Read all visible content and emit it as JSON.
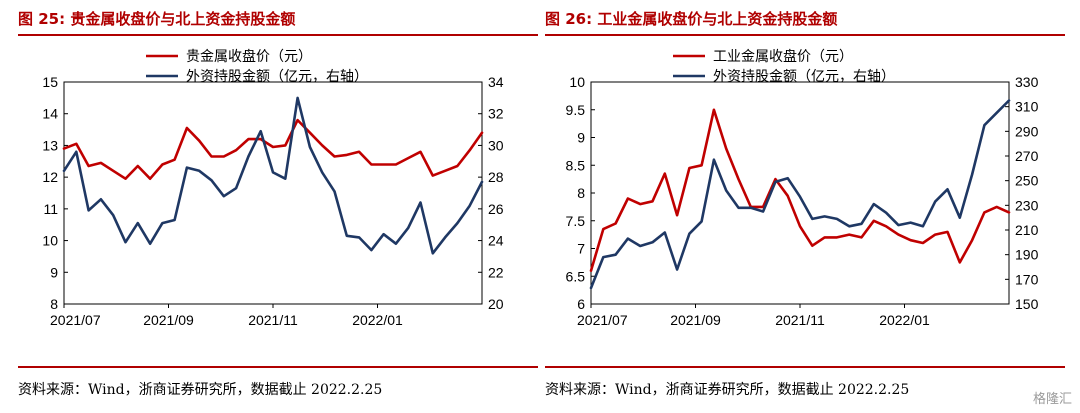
{
  "charts": [
    {
      "title": "图 25: 贵金属收盘价与北上资金持股金额",
      "source": "资料来源：Wind，浙商证券研究所，数据截止 2022.2.25",
      "chart_data": {
        "type": "line",
        "x_ticks": [
          "2021/07",
          "2021/09",
          "2021/11",
          "2022/01"
        ],
        "y_left": {
          "min": 8,
          "max": 15,
          "ticks": [
            8,
            9,
            10,
            11,
            12,
            13,
            14,
            15
          ]
        },
        "y_right": {
          "min": 20,
          "max": 34,
          "ticks": [
            20,
            22,
            24,
            26,
            28,
            30,
            32,
            34
          ]
        },
        "legend_position": "top-center",
        "series": [
          {
            "name": "贵金属收盘价（元）",
            "axis": "left",
            "color": "#c00000",
            "values": [
              12.9,
              13.05,
              12.35,
              12.45,
              12.2,
              11.95,
              12.35,
              11.95,
              12.4,
              12.55,
              13.55,
              13.15,
              12.65,
              12.65,
              12.85,
              13.2,
              13.2,
              12.95,
              13.0,
              13.8,
              13.4,
              13.0,
              12.65,
              12.7,
              12.8,
              12.4,
              12.4,
              12.4,
              12.6,
              12.8,
              12.05,
              12.2,
              12.35,
              12.85,
              13.4
            ]
          },
          {
            "name": "外资持股金额（亿元，右轴）",
            "axis": "right",
            "color": "#1f3864",
            "values": [
              28.4,
              29.6,
              25.9,
              26.6,
              25.6,
              23.9,
              25.1,
              23.8,
              25.1,
              25.3,
              28.6,
              28.4,
              27.8,
              26.8,
              27.3,
              29.3,
              30.9,
              28.3,
              27.9,
              33.0,
              29.9,
              28.3,
              27.1,
              24.3,
              24.2,
              23.4,
              24.4,
              23.8,
              24.8,
              26.4,
              23.2,
              24.2,
              25.1,
              26.2,
              27.7
            ]
          }
        ]
      }
    },
    {
      "title": "图 26: 工业金属收盘价与北上资金持股金额",
      "source": "资料来源：Wind，浙商证券研究所，数据截止 2022.2.25",
      "chart_data": {
        "type": "line",
        "x_ticks": [
          "2021/07",
          "2021/09",
          "2021/11",
          "2022/01"
        ],
        "y_left": {
          "min": 6,
          "max": 10,
          "ticks": [
            6,
            6.5,
            7,
            7.5,
            8,
            8.5,
            9,
            9.5,
            10
          ]
        },
        "y_right": {
          "min": 150,
          "max": 330,
          "ticks": [
            150,
            170,
            190,
            210,
            230,
            250,
            270,
            290,
            310,
            330
          ]
        },
        "legend_position": "top-center",
        "series": [
          {
            "name": "工业金属收盘价（元）",
            "axis": "left",
            "color": "#c00000",
            "values": [
              6.6,
              7.35,
              7.45,
              7.9,
              7.8,
              7.85,
              8.35,
              7.6,
              8.45,
              8.5,
              9.5,
              8.8,
              8.25,
              7.75,
              7.75,
              8.25,
              7.95,
              7.4,
              7.05,
              7.2,
              7.2,
              7.25,
              7.2,
              7.5,
              7.4,
              7.25,
              7.15,
              7.1,
              7.25,
              7.3,
              6.75,
              7.15,
              7.65,
              7.75,
              7.65
            ]
          },
          {
            "name": "外资持股金额（亿元，右轴）",
            "axis": "right",
            "color": "#1f3864",
            "values": [
              163,
              188,
              190,
              203,
              197,
              200,
              208,
              178,
              207,
              217,
              267,
              242,
              228,
              228,
              225,
              249,
              252,
              237,
              219,
              221,
              219,
              213,
              215,
              231,
              224,
              214,
              216,
              213,
              233,
              243,
              220,
              255,
              295,
              305,
              315
            ]
          }
        ]
      }
    }
  ],
  "watermark": "格隆汇"
}
